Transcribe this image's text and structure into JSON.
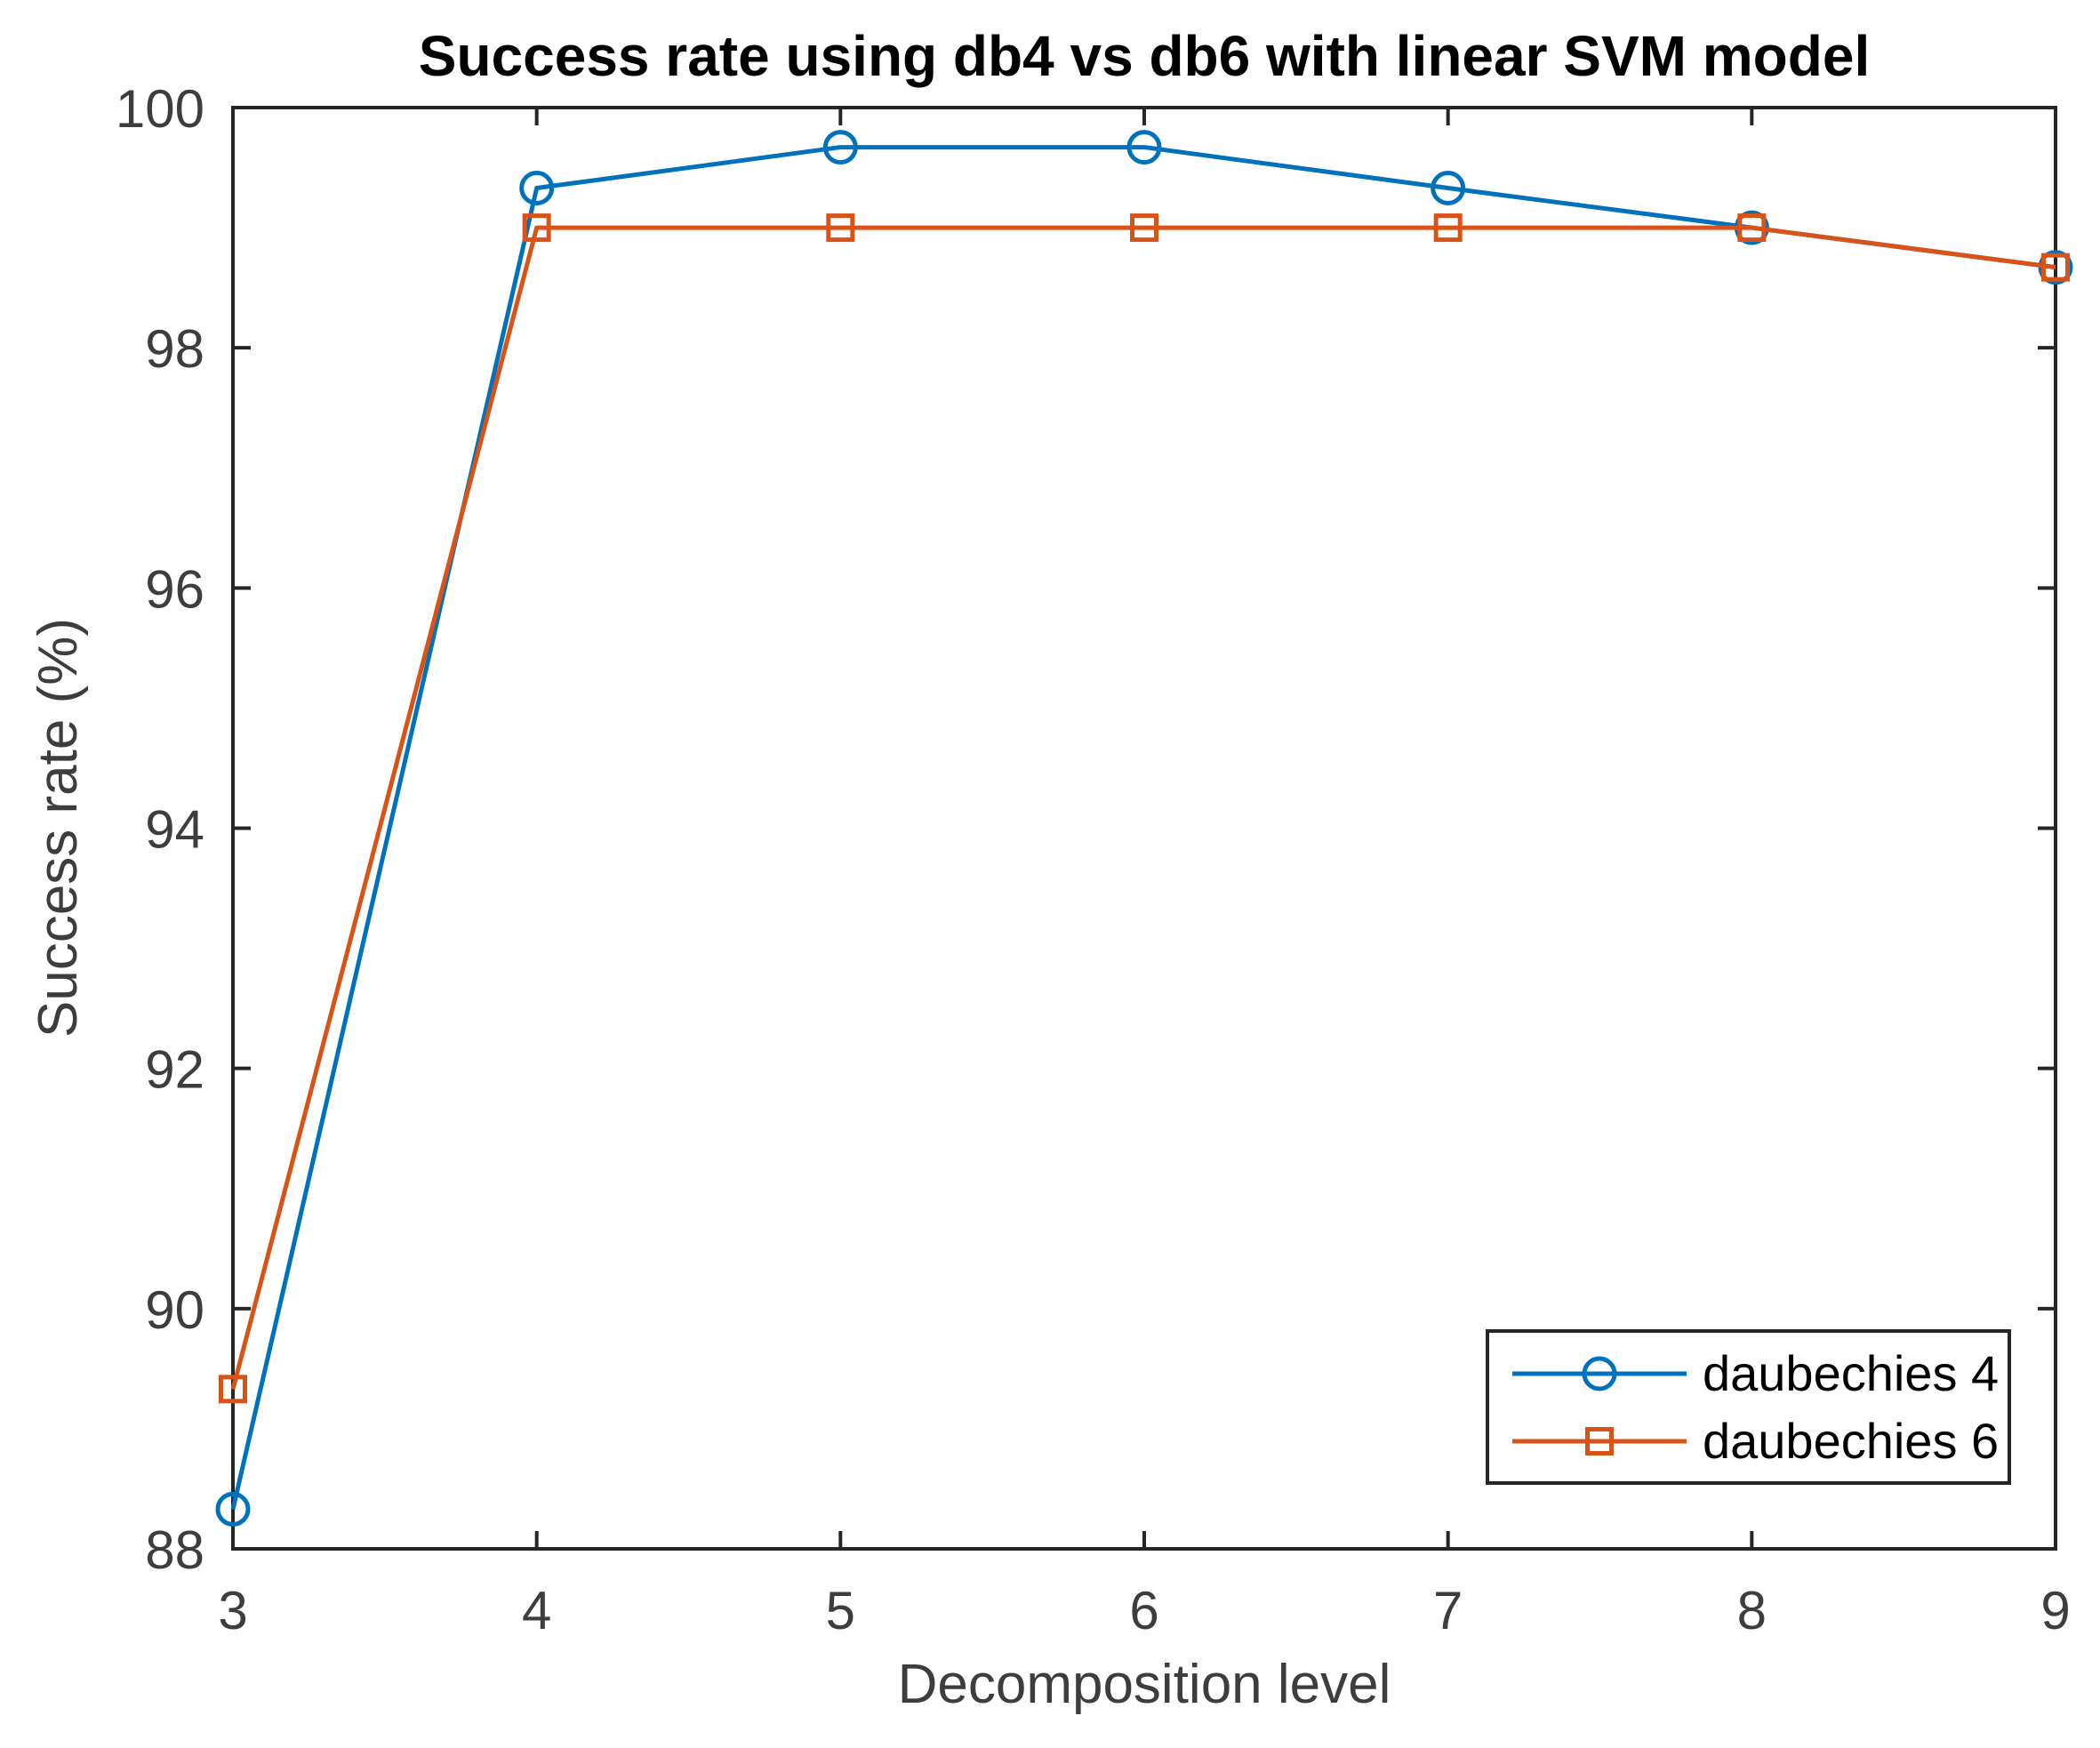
{
  "chart_data": {
    "type": "line",
    "title": "Success rate using db4 vs db6 with linear SVM model",
    "xlabel": "Decomposition level",
    "ylabel": "Success rate (%)",
    "x": [
      3,
      4,
      5,
      6,
      7,
      8,
      9
    ],
    "series": [
      {
        "name": "daubechies 4",
        "marker": "circle",
        "color": "#0072BD",
        "values": [
          88.33,
          99.33,
          99.67,
          99.67,
          99.33,
          99.0,
          98.67
        ]
      },
      {
        "name": "daubechies 6",
        "marker": "square",
        "color": "#D95319",
        "values": [
          89.33,
          99.0,
          99.0,
          99.0,
          99.0,
          99.0,
          98.67
        ]
      }
    ],
    "xlim": [
      3,
      9
    ],
    "ylim": [
      88,
      100
    ],
    "xticks": [
      3,
      4,
      5,
      6,
      7,
      8,
      9
    ],
    "yticks": [
      88,
      90,
      92,
      94,
      96,
      98,
      100
    ],
    "grid": false,
    "legend_position": "bottom-right",
    "axis_color": "#262626",
    "tick_label_color": "#3d3d3d"
  }
}
